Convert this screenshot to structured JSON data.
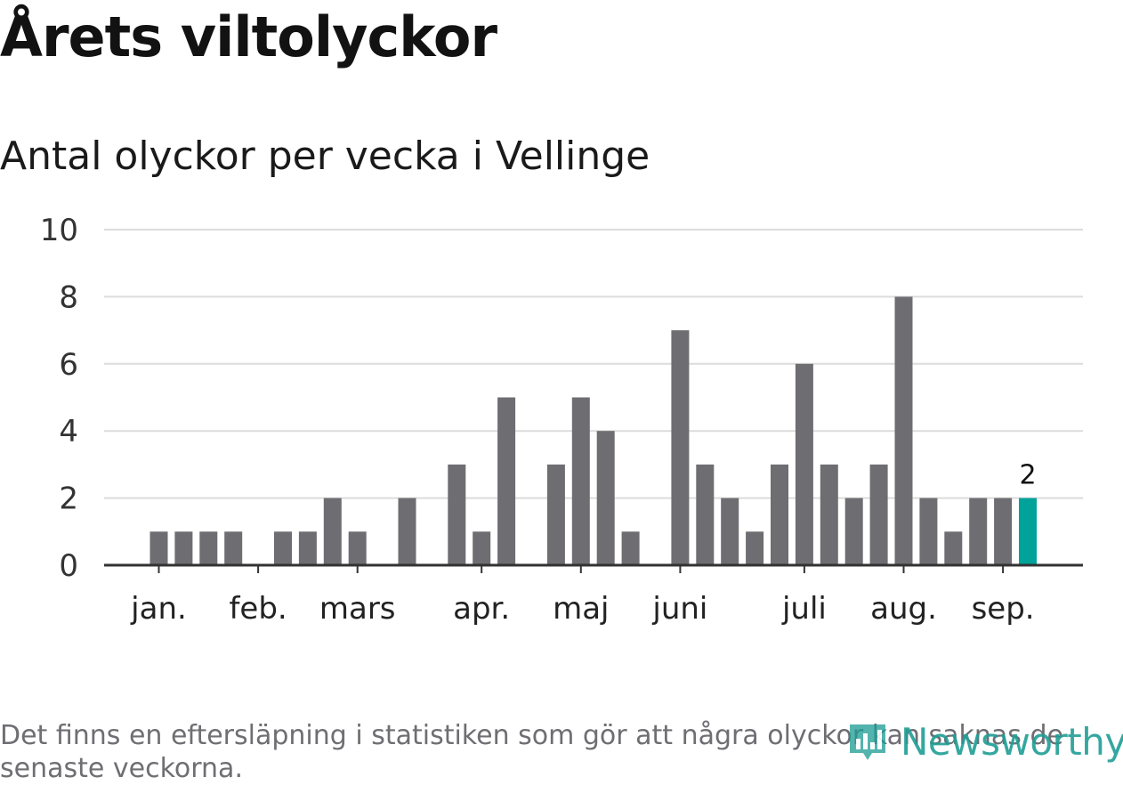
{
  "title": "Årets viltolyckor",
  "subtitle": "Antal olyckor per vecka i Vellinge",
  "footnote": "Det finns en eftersläpning i statistiken som gör att några olyckor kan saknas de senaste veckorna.",
  "brand": {
    "name": "Newsworthy",
    "icon": "newsworthy-logo-icon",
    "color": "#1f9e95"
  },
  "colors": {
    "bar": "#6e6d72",
    "highlight": "#00a29a",
    "grid": "#dcdcdc",
    "axis": "#333333"
  },
  "chart_data": {
    "type": "bar",
    "title": "Antal olyckor per vecka i Vellinge",
    "xlabel": "",
    "ylabel": "",
    "ylim": [
      0,
      10
    ],
    "yticks": [
      0,
      2,
      4,
      6,
      8,
      10
    ],
    "grid": true,
    "legend": "none",
    "x_month_labels": [
      {
        "label": "jan.",
        "week": 1
      },
      {
        "label": "feb.",
        "week": 5
      },
      {
        "label": "mars",
        "week": 9
      },
      {
        "label": "apr.",
        "week": 14
      },
      {
        "label": "maj",
        "week": 18
      },
      {
        "label": "juni",
        "week": 22
      },
      {
        "label": "juli",
        "week": 27
      },
      {
        "label": "aug.",
        "week": 31
      },
      {
        "label": "sep.",
        "week": 35
      }
    ],
    "weeks": [
      1,
      2,
      3,
      4,
      5,
      6,
      7,
      8,
      9,
      10,
      11,
      12,
      13,
      14,
      15,
      16,
      17,
      18,
      19,
      20,
      21,
      22,
      23,
      24,
      25,
      26,
      27,
      28,
      29,
      30,
      31,
      32,
      33,
      34,
      35,
      36
    ],
    "values": [
      1,
      1,
      1,
      1,
      0,
      1,
      1,
      2,
      1,
      0,
      2,
      0,
      3,
      1,
      5,
      0,
      3,
      5,
      4,
      1,
      0,
      7,
      3,
      2,
      1,
      3,
      6,
      3,
      2,
      3,
      8,
      2,
      1,
      2,
      2,
      2
    ],
    "highlight_week": 36,
    "highlight_label": "2"
  }
}
